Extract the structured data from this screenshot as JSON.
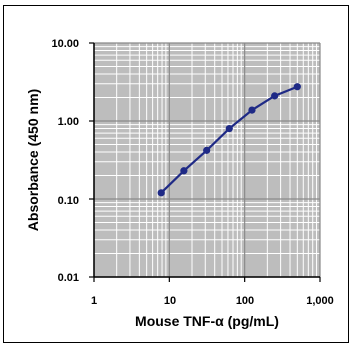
{
  "chart_data": {
    "type": "line",
    "title": "",
    "xlabel": "Mouse TNF-α (pg/mL)",
    "ylabel": "Absorbance (450 nm)",
    "xscale": "log",
    "yscale": "log",
    "xlim": [
      1,
      1000
    ],
    "ylim": [
      0.01,
      10
    ],
    "grid": true,
    "legend": "none",
    "xticks": [
      1,
      10,
      100,
      1000
    ],
    "xtick_labels": [
      "1",
      "10",
      "100",
      "1,000"
    ],
    "yticks": [
      0.01,
      0.1,
      1,
      10
    ],
    "ytick_labels": [
      "0.01",
      "0.10",
      "1.00",
      "10.00"
    ],
    "series": [
      {
        "x": [
          7.8,
          15.6,
          31.3,
          62.5,
          125,
          250,
          500
        ],
        "y": [
          0.12,
          0.23,
          0.42,
          0.8,
          1.38,
          2.1,
          2.75
        ],
        "color": "#1f2a86"
      }
    ],
    "colors": {
      "plot_background": "#bdbdbd",
      "grid_major": "#8a8a8a",
      "grid_minor": "#ffffff",
      "series_line": "#1f2a86"
    }
  }
}
